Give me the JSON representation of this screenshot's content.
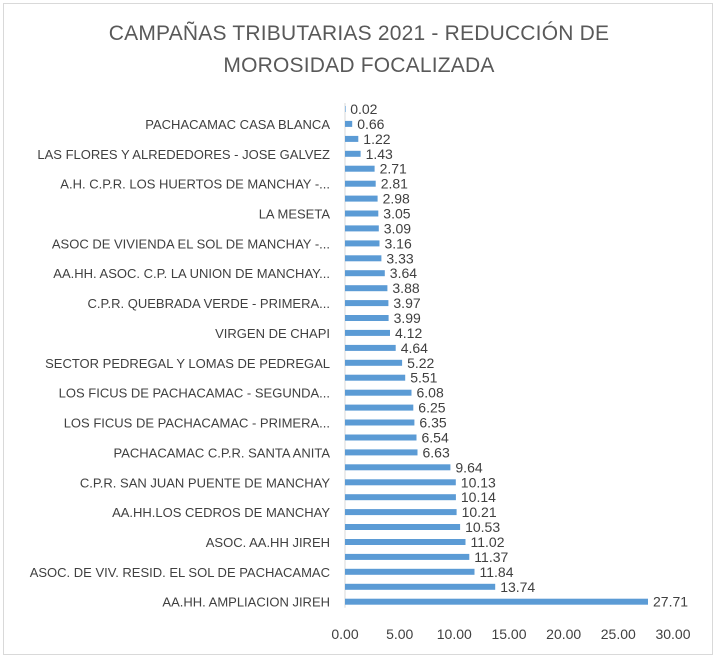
{
  "chart_data": {
    "type": "bar",
    "orientation": "horizontal",
    "title": [
      "CAMPAÑAS TRIBUTARIAS 2021 - REDUCCIÓN DE",
      "MOROSIDAD FOCALIZADA"
    ],
    "xlabel": "",
    "ylabel": "",
    "xlim": [
      0,
      30
    ],
    "x_ticks": [
      "0.00",
      "5.00",
      "10.00",
      "15.00",
      "20.00",
      "25.00",
      "30.00"
    ],
    "grid": false,
    "legend": "none",
    "bar_color": "#5b9bd5",
    "categories": [
      "",
      "PACHACAMAC  CASA BLANCA",
      "",
      "LAS FLORES Y ALREDEDORES - JOSE GALVEZ",
      "",
      "A.H. C.P.R. LOS HUERTOS DE MANCHAY -...",
      "",
      "LA MESETA",
      "",
      "ASOC DE VIVIENDA EL SOL DE MANCHAY -...",
      "",
      "AA.HH. ASOC. C.P. LA UNION DE MANCHAY...",
      "",
      "C.P.R. QUEBRADA VERDE - PRIMERA...",
      "",
      "VIRGEN DE CHAPI",
      "",
      "SECTOR PEDREGAL Y LOMAS DE PEDREGAL",
      "",
      "LOS FICUS DE PACHACAMAC - SEGUNDA...",
      "",
      "LOS FICUS DE PACHACAMAC - PRIMERA...",
      "",
      "PACHACAMAC  C.P.R. SANTA ANITA",
      "",
      "C.P.R. SAN JUAN PUENTE DE MANCHAY",
      "",
      "AA.HH.LOS CEDROS DE MANCHAY",
      "",
      "ASOC. AA.HH JIREH",
      "",
      "ASOC. DE VIV. RESID. EL SOL DE PACHACAMAC",
      "",
      "AA.HH. AMPLIACION JIREH"
    ],
    "values": [
      0.02,
      0.66,
      1.22,
      1.43,
      2.71,
      2.81,
      2.98,
      3.05,
      3.09,
      3.16,
      3.33,
      3.64,
      3.88,
      3.97,
      3.99,
      4.12,
      4.64,
      5.22,
      5.51,
      6.08,
      6.25,
      6.35,
      6.54,
      6.63,
      9.64,
      10.13,
      10.14,
      10.21,
      10.53,
      11.02,
      11.37,
      11.84,
      13.74,
      27.71
    ],
    "data_labels": [
      "0.02",
      "0.66",
      "1.22",
      "1.43",
      "2.71",
      "2.81",
      "2.98",
      "3.05",
      "3.09",
      "3.16",
      "3.33",
      "3.64",
      "3.88",
      "3.97",
      "3.99",
      "4.12",
      "4.64",
      "5.22",
      "5.51",
      "6.08",
      "6.25",
      "6.35",
      "6.54",
      "6.63",
      "9.64",
      "10.13",
      "10.14",
      "10.21",
      "10.53",
      "11.02",
      "11.37",
      "11.84",
      "13.74",
      "27.71"
    ]
  }
}
